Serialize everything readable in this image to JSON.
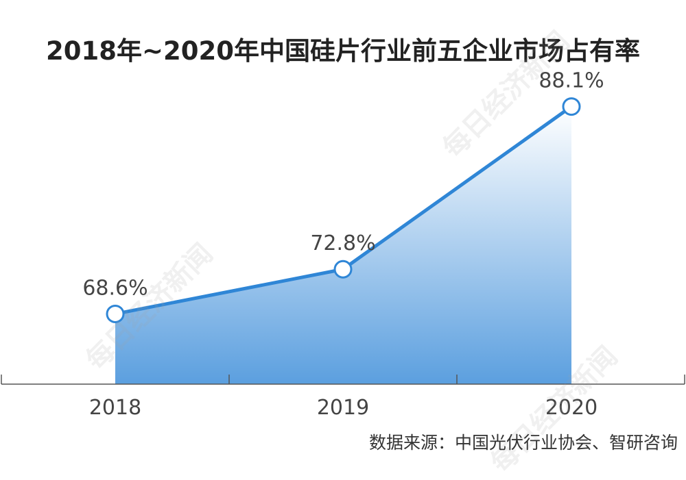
{
  "title": "2018年~2020年中国硅片行业前五企业市场占有率",
  "source": "数据来源：中国光伏行业协会、智研咨询",
  "watermark": "每日经济新闻",
  "colors": {
    "line": "#2f86d6",
    "area_top": "#ffffff",
    "area_bottom": "#5b9fdf",
    "axis": "#555555",
    "label": "#444444"
  },
  "chart_data": {
    "type": "area",
    "categories": [
      "2018",
      "2019",
      "2020"
    ],
    "values": [
      68.6,
      72.8,
      88.1
    ],
    "data_labels": [
      "68.6%",
      "72.8%",
      "88.1%"
    ],
    "ylim": [
      62,
      92
    ],
    "grid": false,
    "legend": "none"
  }
}
